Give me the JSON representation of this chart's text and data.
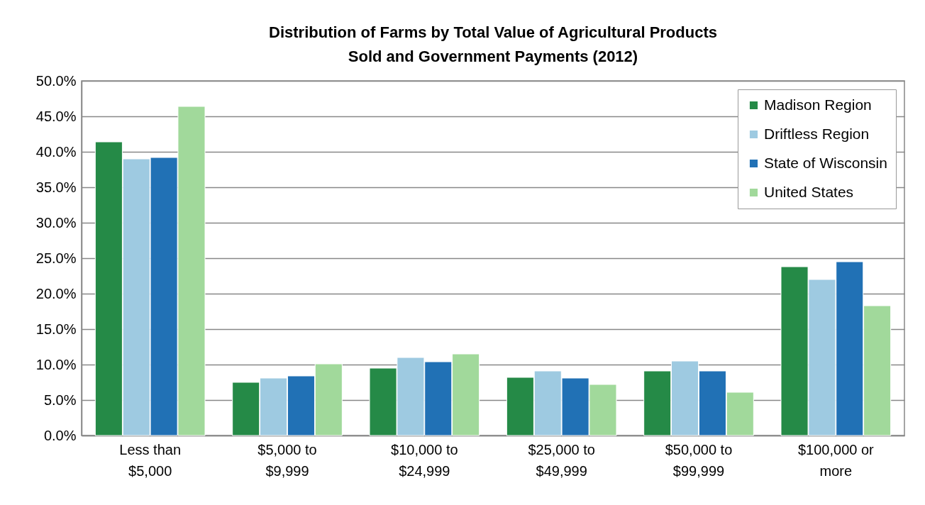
{
  "chart_data": {
    "type": "bar",
    "title": "Distribution of Farms by Total Value of Agricultural Products Sold and Government Payments (2012)",
    "categories": [
      "Less than $5,000",
      "$5,000 to $9,999",
      "$10,000 to $24,999",
      "$25,000 to $49,999",
      "$50,000 to $99,999",
      "$100,000 or more"
    ],
    "series": [
      {
        "name": "Madison Region",
        "color": "#258a47",
        "values": [
          41.4,
          7.5,
          9.5,
          8.2,
          9.1,
          23.8
        ]
      },
      {
        "name": "Driftless Region",
        "color": "#9ecae1",
        "values": [
          39.0,
          8.1,
          11.0,
          9.1,
          10.5,
          22.0
        ]
      },
      {
        "name": "State of Wisconsin",
        "color": "#2171b5",
        "values": [
          39.2,
          8.4,
          10.4,
          8.1,
          9.1,
          24.5
        ]
      },
      {
        "name": "United States",
        "color": "#a1d99b",
        "values": [
          46.4,
          10.1,
          11.5,
          7.2,
          6.1,
          18.3
        ]
      }
    ],
    "ylim": [
      0,
      50
    ],
    "yticks": [
      {
        "value": 0,
        "label": "0.0%"
      },
      {
        "value": 5,
        "label": "5.0%"
      },
      {
        "value": 10,
        "label": "10.0%"
      },
      {
        "value": 15,
        "label": "15.0%"
      },
      {
        "value": 20,
        "label": "20.0%"
      },
      {
        "value": 25,
        "label": "25.0%"
      },
      {
        "value": 30,
        "label": "30.0%"
      },
      {
        "value": 35,
        "label": "35.0%"
      },
      {
        "value": 40,
        "label": "40.0%"
      },
      {
        "value": 45,
        "label": "45.0%"
      },
      {
        "value": 50,
        "label": "50.0%"
      }
    ],
    "grid": "y",
    "legend": "top right"
  }
}
